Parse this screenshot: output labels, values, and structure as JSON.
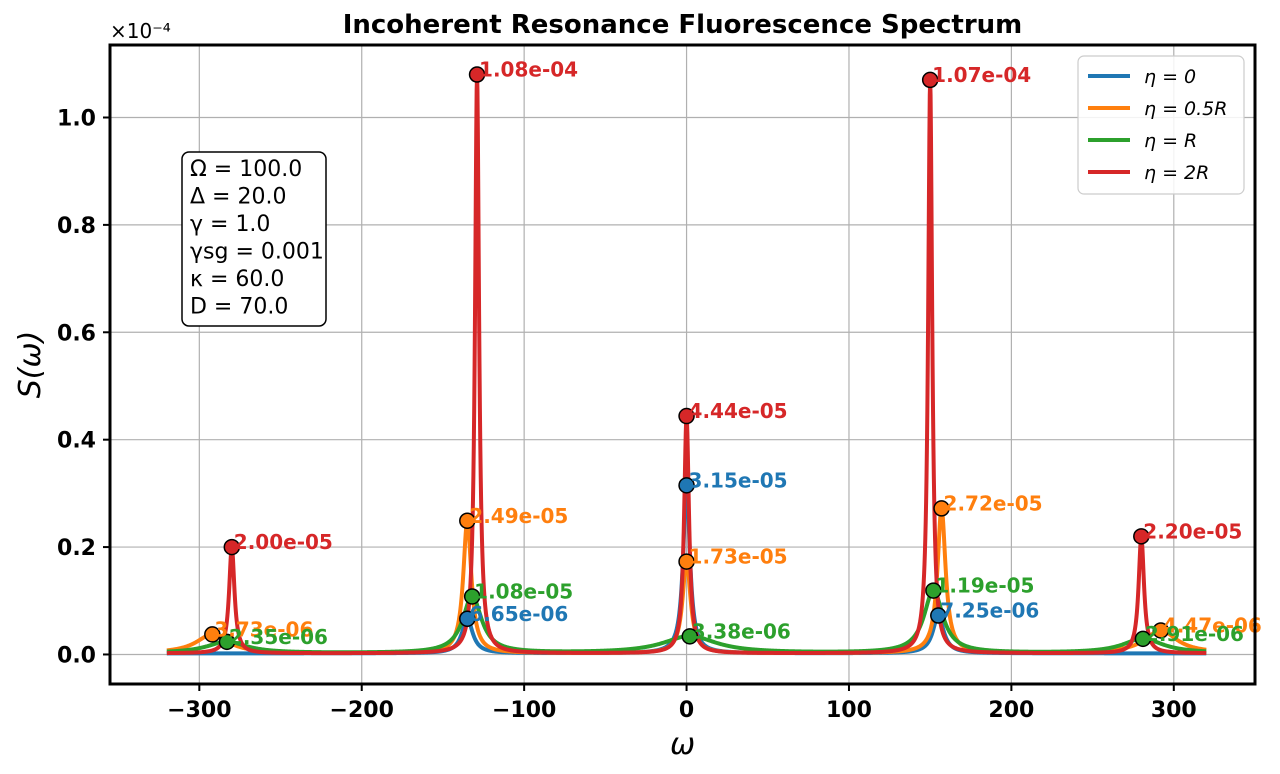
{
  "chart_data": {
    "type": "line",
    "title": "Incoherent Resonance Fluorescence Spectrum",
    "xlabel": "ω",
    "ylabel": "S(ω)",
    "y_multiplier_label": "×10⁻⁴",
    "xlim": [
      -355,
      350
    ],
    "ylim": [
      -0.055,
      1.135
    ],
    "x_ticks": [
      -300,
      -200,
      -100,
      0,
      100,
      200,
      300
    ],
    "x_tick_labels": [
      "−300",
      "−200",
      "−100",
      "0",
      "100",
      "200",
      "300"
    ],
    "y_ticks": [
      0.0,
      0.2,
      0.4,
      0.6,
      0.8,
      1.0
    ],
    "y_tick_labels": [
      "0.0",
      "0.2",
      "0.4",
      "0.6",
      "0.8",
      "1.0"
    ],
    "grid": true,
    "legend_position": "top-right",
    "x_range": [
      -320,
      320
    ],
    "parameters_box": [
      "Ω = 100.0",
      "Δ = 20.0",
      "γ = 1.0",
      "γsg = 0.001",
      "κ = 60.0",
      "D = 70.0"
    ],
    "series": [
      {
        "name": "η = 0",
        "color": "#1f77b4",
        "peaks": [
          {
            "x": -135,
            "y": 0.0665,
            "label": "6.65e-06",
            "w": 4
          },
          {
            "x": 0,
            "y": 0.315,
            "label": "3.15e-05",
            "w": 2.5
          },
          {
            "x": 155,
            "y": 0.0725,
            "label": "7.25e-06",
            "w": 4
          }
        ]
      },
      {
        "name": "η = 0.5R",
        "color": "#ff7f0e",
        "peaks": [
          {
            "x": -292,
            "y": 0.0373,
            "label": "3.73e-06",
            "w": 12
          },
          {
            "x": -135,
            "y": 0.249,
            "label": "2.49e-05",
            "w": 3
          },
          {
            "x": 0,
            "y": 0.173,
            "label": "1.73e-05",
            "w": 3
          },
          {
            "x": 157,
            "y": 0.272,
            "label": "2.72e-05",
            "w": 3
          },
          {
            "x": 292,
            "y": 0.0447,
            "label": "4.47e-06",
            "w": 12
          }
        ]
      },
      {
        "name": "η = R",
        "color": "#2ca02c",
        "peaks": [
          {
            "x": -283,
            "y": 0.0235,
            "label": "2.35e-06",
            "w": 15
          },
          {
            "x": -132,
            "y": 0.108,
            "label": "1.08e-05",
            "w": 7
          },
          {
            "x": 2,
            "y": 0.0338,
            "label": "3.38e-06",
            "w": 20
          },
          {
            "x": 152,
            "y": 0.119,
            "label": "1.19e-05",
            "w": 7
          },
          {
            "x": 281,
            "y": 0.0291,
            "label": "2.91e-06",
            "w": 15
          }
        ]
      },
      {
        "name": "η = 2R",
        "color": "#d62728",
        "peaks": [
          {
            "x": -280,
            "y": 0.2,
            "label": "2.00e-05",
            "w": 2
          },
          {
            "x": -129,
            "y": 1.08,
            "label": "1.08e-04",
            "w": 1.5
          },
          {
            "x": 0,
            "y": 0.444,
            "label": "4.44e-05",
            "w": 1.8
          },
          {
            "x": 150,
            "y": 1.07,
            "label": "1.07e-04",
            "w": 1.5
          },
          {
            "x": 280,
            "y": 0.22,
            "label": "2.20e-05",
            "w": 2
          }
        ]
      }
    ]
  }
}
